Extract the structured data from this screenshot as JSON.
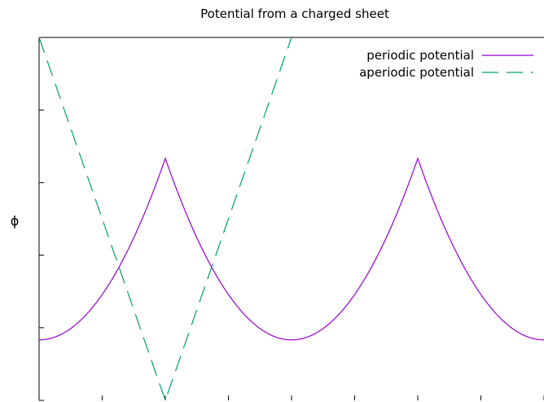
{
  "chart_data": {
    "type": "line",
    "title": "Potential from a charged sheet",
    "xlabel": "",
    "ylabel": "ϕ",
    "xlim": [
      -1,
      3
    ],
    "ylim": [
      -0.5,
      0.5
    ],
    "x_ticks": [
      -1,
      -0.5,
      0,
      0.5,
      1,
      1.5,
      2,
      2.5,
      3
    ],
    "y_ticks": [
      -0.5,
      -0.3,
      -0.1,
      0.1,
      0.3,
      0.5
    ],
    "grid": false,
    "legend_position": "top-right",
    "series": [
      {
        "name": "periodic potential",
        "style": "solid",
        "color": "#9400D3",
        "formula": "f(x) = (x mod 2)^2/2 - |x mod 2| + 1/6 with period 2",
        "x": [
          -1,
          -0.75,
          -0.5,
          -0.25,
          0,
          0.25,
          0.5,
          0.75,
          1,
          1.25,
          1.5,
          1.75,
          2,
          2.25,
          2.5,
          2.75,
          3
        ],
        "y": [
          -0.333,
          -0.302,
          -0.208,
          -0.052,
          0.167,
          -0.052,
          -0.208,
          -0.302,
          -0.333,
          -0.302,
          -0.208,
          -0.052,
          0.167,
          -0.052,
          -0.208,
          -0.302,
          -0.333
        ]
      },
      {
        "name": "aperiodic potential",
        "style": "dashed",
        "color": "#009E73",
        "x": [
          -1,
          0,
          1
        ],
        "y": [
          0.5,
          -0.5,
          0.5
        ]
      }
    ]
  }
}
